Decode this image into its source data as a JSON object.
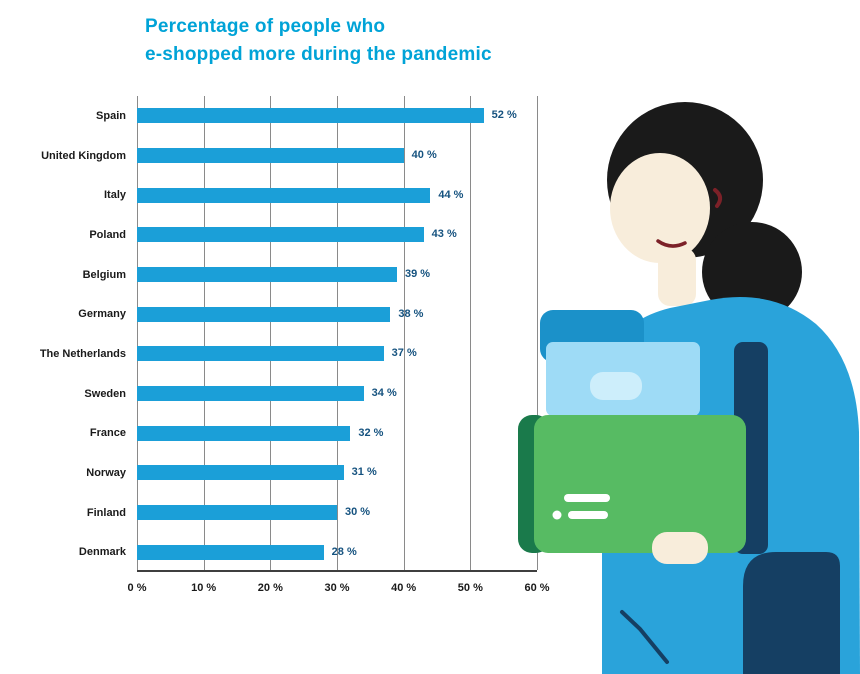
{
  "title": "Percentage of people who\ne-shopped more during the pandemic",
  "chart_data": {
    "type": "bar",
    "orientation": "horizontal",
    "title": "Percentage of people who e-shopped more during the pandemic",
    "categories": [
      "Spain",
      "United Kingdom",
      "Italy",
      "Poland",
      "Belgium",
      "Germany",
      "The Netherlands",
      "Sweden",
      "France",
      "Norway",
      "Finland",
      "Denmark"
    ],
    "values": [
      52,
      40,
      44,
      43,
      39,
      38,
      37,
      34,
      32,
      31,
      30,
      28
    ],
    "value_labels": [
      "52 %",
      "40 %",
      "44 %",
      "43 %",
      "39 %",
      "38 %",
      "37 %",
      "34 %",
      "32 %",
      "31 %",
      "30 %",
      "28 %"
    ],
    "x_ticks": [
      "0 %",
      "10 %",
      "20 %",
      "30 %",
      "40 %",
      "50 %",
      "60 %"
    ],
    "x_tick_values": [
      0,
      10,
      20,
      30,
      40,
      50,
      60
    ],
    "xlim": [
      0,
      60
    ],
    "xlabel": "",
    "ylabel": "",
    "grid": "vertical",
    "legend": "none"
  },
  "colors": {
    "bar": "#1b9fd8",
    "title": "#00a3d7",
    "value_label": "#15527f",
    "axis_label": "#1a1a1a",
    "gridline": "#8a8a8a",
    "illustration": {
      "hair": "#1a1a1a",
      "skin": "#f8eddb",
      "shirt": "#2aa3da",
      "navy": "#153f63",
      "box_green": "#57bb63",
      "box_green_dark": "#1a7a4b",
      "box_blue_light": "#9edbf6",
      "box_blue_label": "#cdeefb",
      "box_lid": "#1b91c9",
      "mouth": "#7c2128"
    }
  },
  "illustration": {
    "name": "woman-carrying-boxes"
  }
}
